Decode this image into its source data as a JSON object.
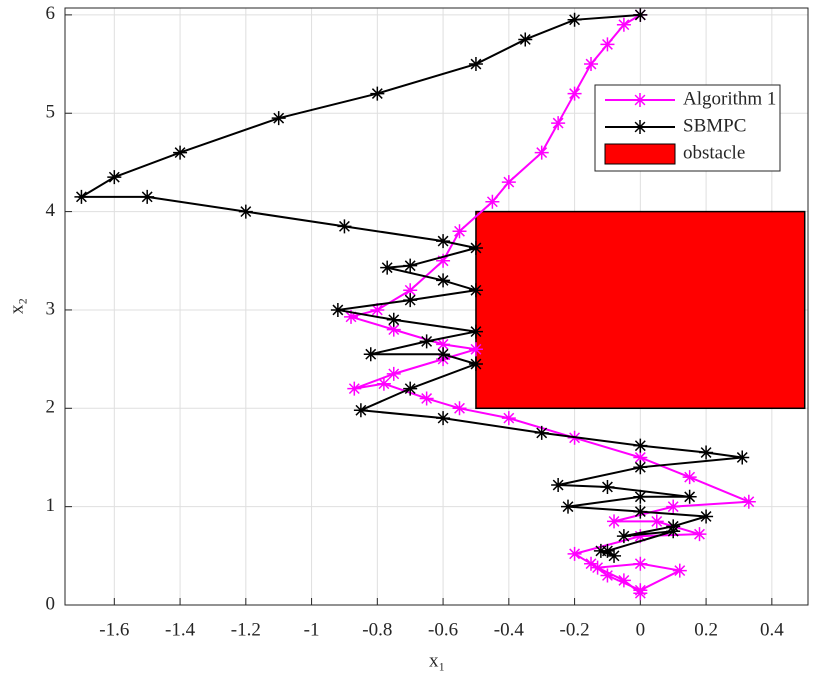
{
  "chart_data": {
    "type": "line",
    "xlabel": "x₁",
    "ylabel": "x₂",
    "xlim": [
      -1.75,
      0.51
    ],
    "ylim": [
      0,
      6.07
    ],
    "xticks": [
      -1.6,
      -1.4,
      -1.2,
      -1,
      -0.8,
      -0.6,
      -0.4,
      -0.2,
      0,
      0.2,
      0.4
    ],
    "yticks": [
      0,
      1,
      2,
      3,
      4,
      5,
      6
    ],
    "grid": true,
    "legend": "upper right",
    "obstacle": {
      "name": "obstacle",
      "color": "#ff0000",
      "x": [
        -0.5,
        0.5
      ],
      "y": [
        2,
        4
      ]
    },
    "series": [
      {
        "name": "Algorithm 1",
        "color": "#ff00ff",
        "x": [
          0,
          -0.05,
          -0.1,
          -0.15,
          -0.2,
          -0.25,
          -0.3,
          -0.4,
          -0.45,
          -0.55,
          -0.6,
          -0.7,
          -0.8,
          -0.88,
          -0.75,
          -0.6,
          -0.5,
          -0.6,
          -0.75,
          -0.87,
          -0.78,
          -0.65,
          -0.55,
          -0.4,
          -0.2,
          0,
          0.15,
          0.33,
          0.1,
          -0.08,
          0.05,
          0.18,
          0,
          -0.2,
          -0.15,
          -0.1,
          0,
          0.12,
          0,
          -0.13,
          -0.05,
          0
        ],
        "values": [
          6,
          5.9,
          5.7,
          5.5,
          5.2,
          4.9,
          4.6,
          4.3,
          4.1,
          3.8,
          3.5,
          3.2,
          3.0,
          2.93,
          2.8,
          2.65,
          2.6,
          2.5,
          2.35,
          2.2,
          2.25,
          2.1,
          2.0,
          1.9,
          1.7,
          1.5,
          1.3,
          1.05,
          1.0,
          0.85,
          0.85,
          0.72,
          0.7,
          0.52,
          0.42,
          0.3,
          0.15,
          0.35,
          0.42,
          0.38,
          0.25,
          0.12
        ]
      },
      {
        "name": "SBMPC",
        "color": "#000000",
        "x": [
          0,
          -0.2,
          -0.35,
          -0.5,
          -0.8,
          -1.1,
          -1.4,
          -1.6,
          -1.7,
          -1.5,
          -1.2,
          -0.9,
          -0.6,
          -0.5,
          -0.7,
          -0.77,
          -0.6,
          -0.5,
          -0.7,
          -0.92,
          -0.75,
          -0.5,
          -0.65,
          -0.82,
          -0.6,
          -0.5,
          -0.7,
          -0.85,
          -0.6,
          -0.3,
          0,
          0.2,
          0.31,
          0,
          -0.25,
          -0.1,
          0.15,
          0,
          -0.22,
          0,
          0.2,
          0.1,
          -0.05,
          0.1,
          -0.1,
          -0.08,
          -0.12
        ],
        "values": [
          6,
          5.95,
          5.75,
          5.5,
          5.2,
          4.95,
          4.6,
          4.35,
          4.15,
          4.15,
          4.0,
          3.85,
          3.7,
          3.63,
          3.45,
          3.43,
          3.3,
          3.2,
          3.1,
          3.0,
          2.9,
          2.78,
          2.68,
          2.55,
          2.55,
          2.45,
          2.2,
          1.98,
          1.9,
          1.75,
          1.62,
          1.55,
          1.5,
          1.4,
          1.22,
          1.2,
          1.1,
          1.1,
          1.0,
          0.95,
          0.9,
          0.8,
          0.7,
          0.75,
          0.55,
          0.5,
          0.55
        ]
      }
    ]
  }
}
